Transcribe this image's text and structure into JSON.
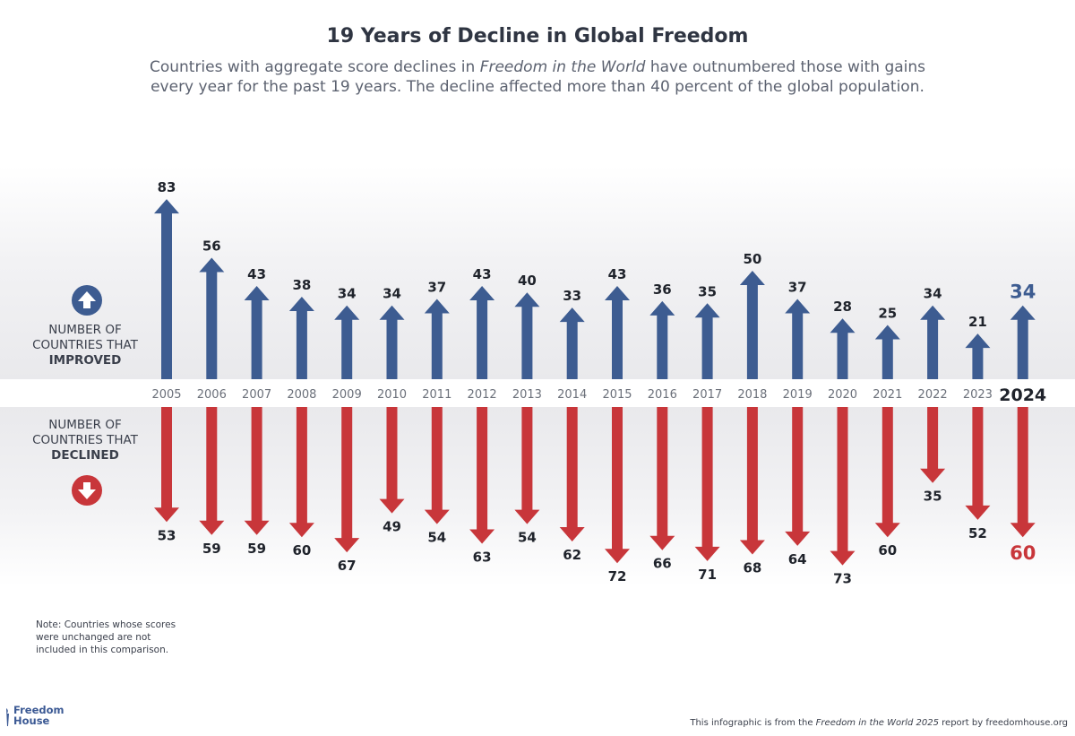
{
  "header": {
    "title": "19 Years of Decline in Global Freedom",
    "subtitle_pre": "Countries with aggregate score declines in ",
    "subtitle_em": "Freedom in the World",
    "subtitle_post": " have outnumbered those with gains every year for the past 19 years. The decline affected more than 40 percent of the global population."
  },
  "labels": {
    "improved_line1": "NUMBER OF",
    "improved_line2": "COUNTRIES THAT",
    "improved_bold": "IMPROVED",
    "declined_line1": "NUMBER OF",
    "declined_line2": "COUNTRIES THAT",
    "declined_bold": "DECLINED"
  },
  "note": "Note: Countries whose scores were unchanged are not included in this comparison.",
  "logo": {
    "line1": "Freedom",
    "line2": "House"
  },
  "footer": {
    "pre": "This infographic is from the ",
    "em": "Freedom in the World 2025",
    "post": " report by freedomhouse.org"
  },
  "colors": {
    "improved": "#3d5c91",
    "declined": "#c8363a",
    "text": "#2f3542"
  },
  "icons": {
    "improved": "arrow-up-circle-icon",
    "declined": "arrow-down-circle-icon"
  },
  "chart_data": {
    "type": "bar",
    "categories": [
      "2005",
      "2006",
      "2007",
      "2008",
      "2009",
      "2010",
      "2011",
      "2012",
      "2013",
      "2014",
      "2015",
      "2016",
      "2017",
      "2018",
      "2019",
      "2020",
      "2021",
      "2022",
      "2023",
      "2024"
    ],
    "series": [
      {
        "name": "NUMBER OF COUNTRIES THAT IMPROVED",
        "values": [
          83,
          56,
          43,
          38,
          34,
          34,
          37,
          43,
          40,
          33,
          43,
          36,
          35,
          50,
          37,
          28,
          25,
          34,
          21,
          34
        ]
      },
      {
        "name": "NUMBER OF COUNTRIES THAT DECLINED",
        "values": [
          53,
          59,
          59,
          60,
          67,
          49,
          54,
          63,
          54,
          62,
          72,
          66,
          71,
          68,
          64,
          73,
          60,
          35,
          52,
          60
        ]
      }
    ],
    "highlight_category": "2024"
  }
}
